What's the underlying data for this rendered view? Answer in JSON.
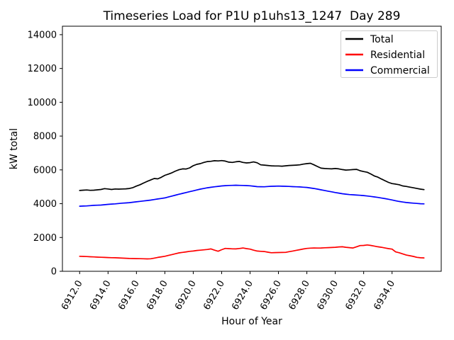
{
  "figure": {
    "title": "Timeseries Load for P1U p1uhs13_1247  Day 289",
    "xlabel": "Hour of Year",
    "ylabel": "kW total"
  },
  "chart_data": {
    "type": "line",
    "title": "Timeseries Load for P1U p1uhs13_1247  Day 289",
    "xlabel": "Hour of Year",
    "ylabel": "kW total",
    "grid": false,
    "ylim": [
      0,
      14500
    ],
    "xlim_data": [
      6912.0,
      6936.25
    ],
    "legend": {
      "position": "upper right",
      "entries": [
        "Total",
        "Residential",
        "Commercial"
      ]
    },
    "yticks": {
      "values": [
        0,
        2000,
        4000,
        6000,
        8000,
        10000,
        12000,
        14000
      ],
      "labels": [
        "0",
        "2000",
        "4000",
        "6000",
        "8000",
        "10000",
        "12000",
        "14000"
      ]
    },
    "xticks": {
      "values": [
        6912,
        6914,
        6916,
        6918,
        6920,
        6922,
        6924,
        6926,
        6928,
        6930,
        6932,
        6934
      ],
      "labels": [
        "6912.0",
        "6914.0",
        "6916.0",
        "6918.0",
        "6920.0",
        "6922.0",
        "6924.0",
        "6926.0",
        "6928.0",
        "6930.0",
        "6932.0",
        "6934.0"
      ],
      "rotation_deg": 60
    },
    "x": [
      6912.0,
      6912.25,
      6912.5,
      6912.75,
      6913.0,
      6913.25,
      6913.5,
      6913.75,
      6914.0,
      6914.25,
      6914.5,
      6914.75,
      6915.0,
      6915.25,
      6915.5,
      6915.75,
      6916.0,
      6916.25,
      6916.5,
      6916.75,
      6917.0,
      6917.25,
      6917.5,
      6917.75,
      6918.0,
      6918.25,
      6918.5,
      6918.75,
      6919.0,
      6919.25,
      6919.5,
      6919.75,
      6920.0,
      6920.25,
      6920.5,
      6920.75,
      6921.0,
      6921.25,
      6921.5,
      6921.75,
      6922.0,
      6922.25,
      6922.5,
      6922.75,
      6923.0,
      6923.25,
      6923.5,
      6923.75,
      6924.0,
      6924.25,
      6924.5,
      6924.75,
      6925.0,
      6925.25,
      6925.5,
      6925.75,
      6926.0,
      6926.25,
      6926.5,
      6926.75,
      6927.0,
      6927.25,
      6927.5,
      6927.75,
      6928.0,
      6928.25,
      6928.5,
      6928.75,
      6929.0,
      6929.25,
      6929.5,
      6929.75,
      6930.0,
      6930.25,
      6930.5,
      6930.75,
      6931.0,
      6931.25,
      6931.5,
      6931.75,
      6932.0,
      6932.25,
      6932.5,
      6932.75,
      6933.0,
      6933.25,
      6933.5,
      6933.75,
      6934.0,
      6934.25,
      6934.5,
      6934.75,
      6935.0,
      6935.25,
      6935.5,
      6935.75,
      6936.0,
      6936.25
    ],
    "series": [
      {
        "name": "Total",
        "color": "#000000",
        "values": [
          4780,
          4800,
          4810,
          4790,
          4800,
          4820,
          4840,
          4890,
          4870,
          4840,
          4870,
          4860,
          4870,
          4880,
          4900,
          4950,
          5040,
          5120,
          5220,
          5320,
          5400,
          5490,
          5470,
          5560,
          5680,
          5750,
          5830,
          5930,
          6010,
          6060,
          6050,
          6120,
          6250,
          6330,
          6370,
          6440,
          6490,
          6510,
          6540,
          6530,
          6550,
          6520,
          6460,
          6440,
          6480,
          6500,
          6440,
          6410,
          6430,
          6470,
          6420,
          6300,
          6280,
          6260,
          6240,
          6230,
          6230,
          6220,
          6240,
          6260,
          6270,
          6280,
          6300,
          6340,
          6370,
          6390,
          6300,
          6200,
          6100,
          6080,
          6070,
          6060,
          6080,
          6060,
          6020,
          5990,
          6000,
          6020,
          6030,
          5950,
          5900,
          5860,
          5760,
          5640,
          5570,
          5460,
          5360,
          5260,
          5190,
          5160,
          5120,
          5050,
          5020,
          4980,
          4940,
          4900,
          4860,
          4830
        ]
      },
      {
        "name": "Residential",
        "color": "#ff0000",
        "values": [
          890,
          880,
          870,
          860,
          850,
          840,
          830,
          820,
          815,
          805,
          800,
          790,
          780,
          770,
          760,
          755,
          750,
          745,
          740,
          735,
          740,
          780,
          820,
          855,
          890,
          940,
          990,
          1040,
          1090,
          1120,
          1150,
          1180,
          1200,
          1230,
          1250,
          1270,
          1290,
          1325,
          1250,
          1185,
          1280,
          1355,
          1340,
          1330,
          1325,
          1350,
          1380,
          1340,
          1310,
          1250,
          1200,
          1180,
          1170,
          1130,
          1100,
          1105,
          1110,
          1115,
          1120,
          1160,
          1200,
          1240,
          1280,
          1320,
          1355,
          1370,
          1380,
          1375,
          1380,
          1390,
          1400,
          1410,
          1420,
          1440,
          1450,
          1420,
          1400,
          1380,
          1450,
          1520,
          1530,
          1560,
          1530,
          1490,
          1450,
          1420,
          1380,
          1340,
          1310,
          1150,
          1100,
          1030,
          960,
          920,
          880,
          825,
          800,
          790
        ]
      },
      {
        "name": "Commercial",
        "color": "#0000ff",
        "values": [
          3850,
          3860,
          3870,
          3885,
          3900,
          3910,
          3920,
          3940,
          3960,
          3975,
          3990,
          4010,
          4030,
          4045,
          4060,
          4085,
          4110,
          4135,
          4160,
          4185,
          4210,
          4245,
          4280,
          4310,
          4340,
          4395,
          4450,
          4505,
          4560,
          4610,
          4660,
          4710,
          4760,
          4810,
          4860,
          4900,
          4940,
          4970,
          5000,
          5025,
          5050,
          5065,
          5080,
          5085,
          5090,
          5085,
          5080,
          5070,
          5060,
          5035,
          5010,
          5005,
          5000,
          5015,
          5030,
          5035,
          5040,
          5035,
          5030,
          5020,
          5010,
          5000,
          4990,
          4975,
          4960,
          4930,
          4900,
          4860,
          4820,
          4780,
          4740,
          4700,
          4660,
          4625,
          4590,
          4565,
          4540,
          4525,
          4510,
          4495,
          4480,
          4455,
          4430,
          4400,
          4370,
          4335,
          4300,
          4260,
          4220,
          4175,
          4130,
          4100,
          4070,
          4050,
          4030,
          4015,
          4000,
          3990
        ]
      }
    ]
  }
}
